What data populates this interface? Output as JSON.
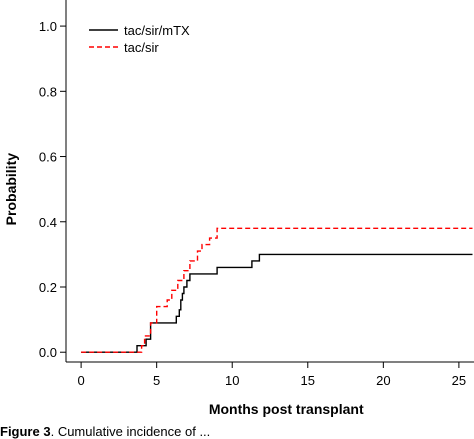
{
  "chart_data": {
    "type": "line",
    "step": true,
    "title": "",
    "xlabel": "Months post transplant",
    "ylabel": "Probability",
    "xlim": [
      -1,
      26
    ],
    "ylim": [
      -0.03,
      1.08
    ],
    "xticks": [
      0,
      5,
      10,
      15,
      20,
      25
    ],
    "yticks": [
      0.0,
      0.2,
      0.4,
      0.6,
      0.8,
      1.0
    ],
    "xtick_labels": [
      "0",
      "5",
      "10",
      "15",
      "20",
      "25"
    ],
    "ytick_labels": [
      "0.0",
      "0.2",
      "0.4",
      "0.6",
      "0.8",
      "1.0"
    ],
    "grid": false,
    "legend_position": "top-left",
    "series": [
      {
        "name": "tac/sir/mTX",
        "color": "#000000",
        "dash": "solid",
        "x": [
          0,
          3.7,
          4.3,
          4.6,
          6.3,
          6.5,
          6.6,
          6.7,
          6.8,
          7.0,
          7.2,
          7.4,
          9.0,
          11.3,
          11.8,
          25.9
        ],
        "y": [
          0.0,
          0.02,
          0.04,
          0.09,
          0.11,
          0.13,
          0.16,
          0.18,
          0.2,
          0.22,
          0.24,
          0.24,
          0.26,
          0.28,
          0.3,
          0.3
        ]
      },
      {
        "name": "tac/sir",
        "color": "#ff0000",
        "dash": "dashed",
        "x": [
          0,
          4.0,
          4.2,
          4.6,
          5.0,
          5.7,
          6.0,
          6.4,
          6.8,
          7.2,
          7.7,
          8.0,
          8.5,
          9.0,
          25.9
        ],
        "y": [
          0.0,
          0.02,
          0.05,
          0.09,
          0.14,
          0.16,
          0.19,
          0.22,
          0.25,
          0.28,
          0.31,
          0.33,
          0.35,
          0.38,
          0.38
        ]
      }
    ]
  },
  "caption": {
    "label": "Figure 3",
    "text": "Cumulative incidence of ..."
  }
}
